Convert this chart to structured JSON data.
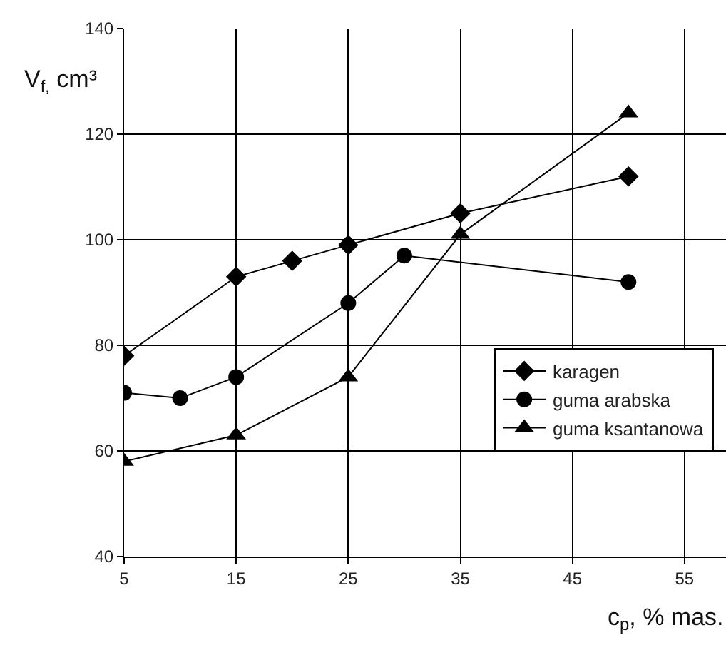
{
  "chart_data": {
    "type": "line",
    "xlabel": "c$_{p}$, % mas.",
    "ylabel": "V$_{f,}$ cm³",
    "xlim": [
      5,
      58.7
    ],
    "xticks": [
      5,
      15,
      25,
      35,
      45,
      55
    ],
    "ylim": [
      40,
      140
    ],
    "yticks": [
      40,
      60,
      80,
      100,
      120,
      140
    ],
    "grid": true,
    "legend": "bottom right",
    "line_style": "solid",
    "series": [
      {
        "name": "karagen",
        "color": "#000000",
        "marker": "diamond",
        "x": [
          5,
          15,
          20,
          25,
          35,
          50
        ],
        "values": [
          78,
          93,
          96,
          99,
          105,
          112
        ]
      },
      {
        "name": "guma arabska",
        "color": "#000000",
        "marker": "circle",
        "x": [
          5,
          10,
          15,
          25,
          30,
          50
        ],
        "values": [
          71,
          70,
          74,
          88,
          97,
          92
        ]
      },
      {
        "name": "guma ksantanowa",
        "color": "#000000",
        "marker": "triangle",
        "x": [
          5,
          15,
          25,
          35,
          50
        ],
        "values": [
          58,
          63,
          74,
          101,
          124
        ]
      }
    ]
  }
}
